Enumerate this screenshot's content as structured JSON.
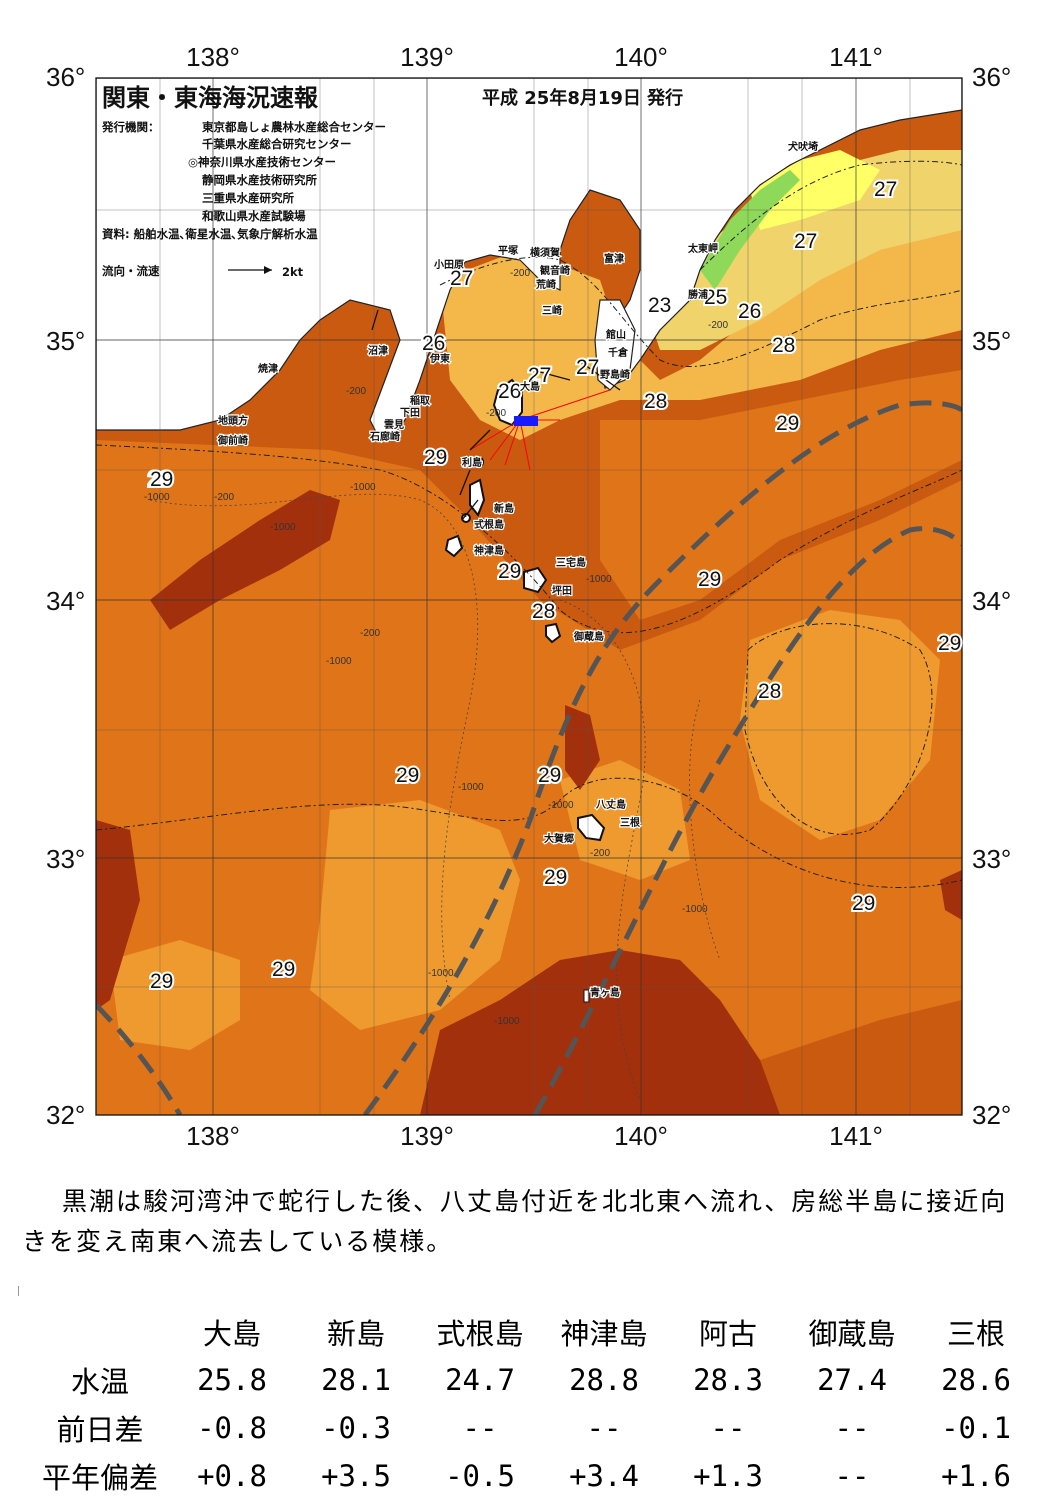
{
  "header": {
    "title": "関東・東海海況速報",
    "date": "平成 25年8月19日 発行",
    "issuer_label": "発行機関：",
    "issuers": [
      "東京都島しょ農林水産総合センター",
      "千葉県水産総合研究センター",
      "◎神奈川県水産技術センター",
      "静岡県水産技術研究所",
      "三重県水産研究所",
      "和歌山県水産試験場"
    ],
    "sources": "資料: 船舶水温､衛星水温､気象庁解析水温",
    "current_legend_label": "流向・流速",
    "current_legend_value": "2kt"
  },
  "axes": {
    "lon_labels": [
      "138°",
      "139°",
      "140°",
      "141°"
    ],
    "lat_labels": [
      "36°",
      "35°",
      "34°",
      "33°",
      "32°"
    ]
  },
  "colors": {
    "land": "#ffffff",
    "sst_25": "#ffff66",
    "sst_26": "#f0d36a",
    "sst_27": "#f4b84a",
    "sst_28": "#ef9a2e",
    "sst_29": "#e07418",
    "sst_29_5": "#c95a10",
    "sst_30": "#a3300c",
    "coastal_green": "#8ed85a",
    "kuroshio_path": "#555555",
    "current_arrow": "#ff0000"
  },
  "temperature_labels": [
    "27",
    "27",
    "26",
    "26",
    "27",
    "27",
    "28",
    "29",
    "29",
    "29",
    "28",
    "29",
    "29",
    "29",
    "28",
    "29",
    "29",
    "29",
    "29",
    "29",
    "29",
    "28",
    "25",
    "26",
    "28",
    "29",
    "27",
    "23"
  ],
  "depth_labels": [
    "-200",
    "-200",
    "-1000",
    "-1000",
    "-200",
    "-1000",
    "-200",
    "-200",
    "-1000",
    "-200",
    "-1000",
    "-1000",
    "-1000",
    "-1000",
    "-1000",
    "-200",
    "-200",
    "-1000"
  ],
  "place_names": {
    "inubozaki": "犬吠埼",
    "taitozaki": "太東岬",
    "katsuura": "勝浦",
    "tomiura": "富津",
    "yokosuka": "横須賀",
    "kannonzaki": "観音崎",
    "arasaki": "荒崎",
    "misaki": "三崎",
    "hiratsuka": "平塚",
    "odawara": "小田原",
    "tateyama": "館山",
    "chikura": "千倉",
    "nojimazaki": "野島崎",
    "numazu": "沼津",
    "ito": "伊東",
    "yaizu": "焼津",
    "inatori": "稲取",
    "shimoda": "下田",
    "kumomi": "雲見",
    "irozaki": "石廊崎",
    "jitogata": "地頭方",
    "omaezaki": "御前崎",
    "oshima": "大島",
    "toshima": "利島",
    "niijima": "新島",
    "shikinejima": "式根島",
    "kozushima": "神津島",
    "miyakejima": "三宅島",
    "tsubota": "坪田",
    "mikurajima": "御蔵島",
    "hachijojima": "八丈島",
    "mitsune": "三根",
    "okago": "大賀郷",
    "aogashima": "青ヶ島"
  },
  "summary": "黒潮は駿河湾沖で蛇行した後、八丈島付近を北北東へ流れ、房総半島に接近向きを変え南東へ流去している模様。",
  "observations": {
    "columns": [
      "大島",
      "新島",
      "式根島",
      "神津島",
      "阿古",
      "御蔵島",
      "三根"
    ],
    "rows": [
      {
        "label": "水温",
        "values": [
          "25.8",
          "28.1",
          "24.7",
          "28.8",
          "28.3",
          "27.4",
          "28.6"
        ]
      },
      {
        "label": "前日差",
        "values": [
          "-0.8",
          "-0.3",
          "--",
          "--",
          "--",
          "--",
          "-0.1"
        ]
      },
      {
        "label": "平年偏差",
        "values": [
          "+0.8",
          "+3.5",
          "-0.5",
          "+3.4",
          "+1.3",
          "--",
          "+1.6"
        ]
      }
    ]
  }
}
